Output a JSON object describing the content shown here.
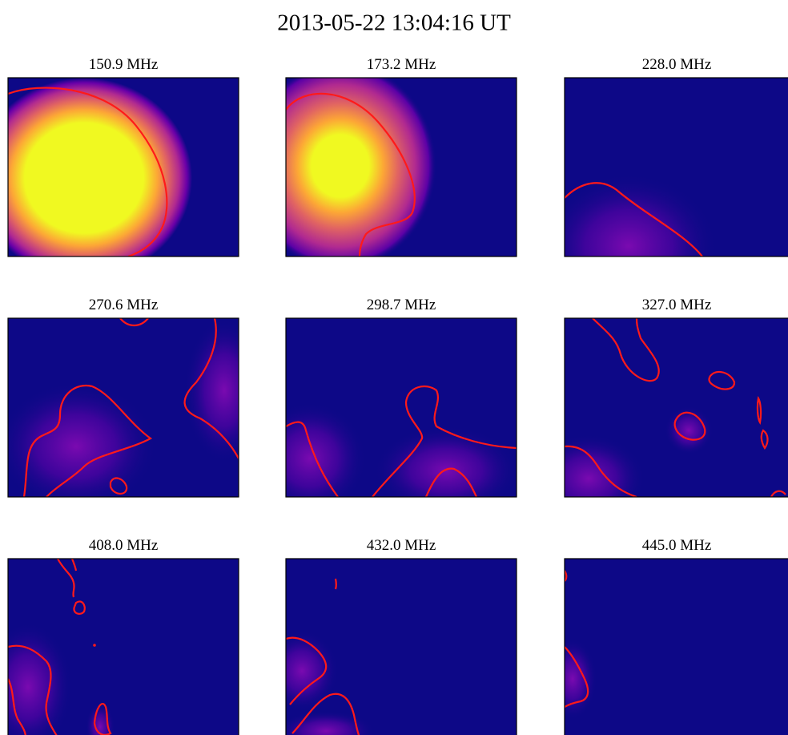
{
  "figure": {
    "title": "2013-05-22 13:04:16 UT",
    "panels": [
      {
        "title": "150.9 MHz"
      },
      {
        "title": "173.2 MHz"
      },
      {
        "title": "228.0 MHz"
      },
      {
        "title": "270.6 MHz"
      },
      {
        "title": "298.7 MHz"
      },
      {
        "title": "327.0 MHz"
      },
      {
        "title": "408.0 MHz"
      },
      {
        "title": "432.0 MHz"
      },
      {
        "title": "445.0 MHz"
      }
    ]
  }
}
